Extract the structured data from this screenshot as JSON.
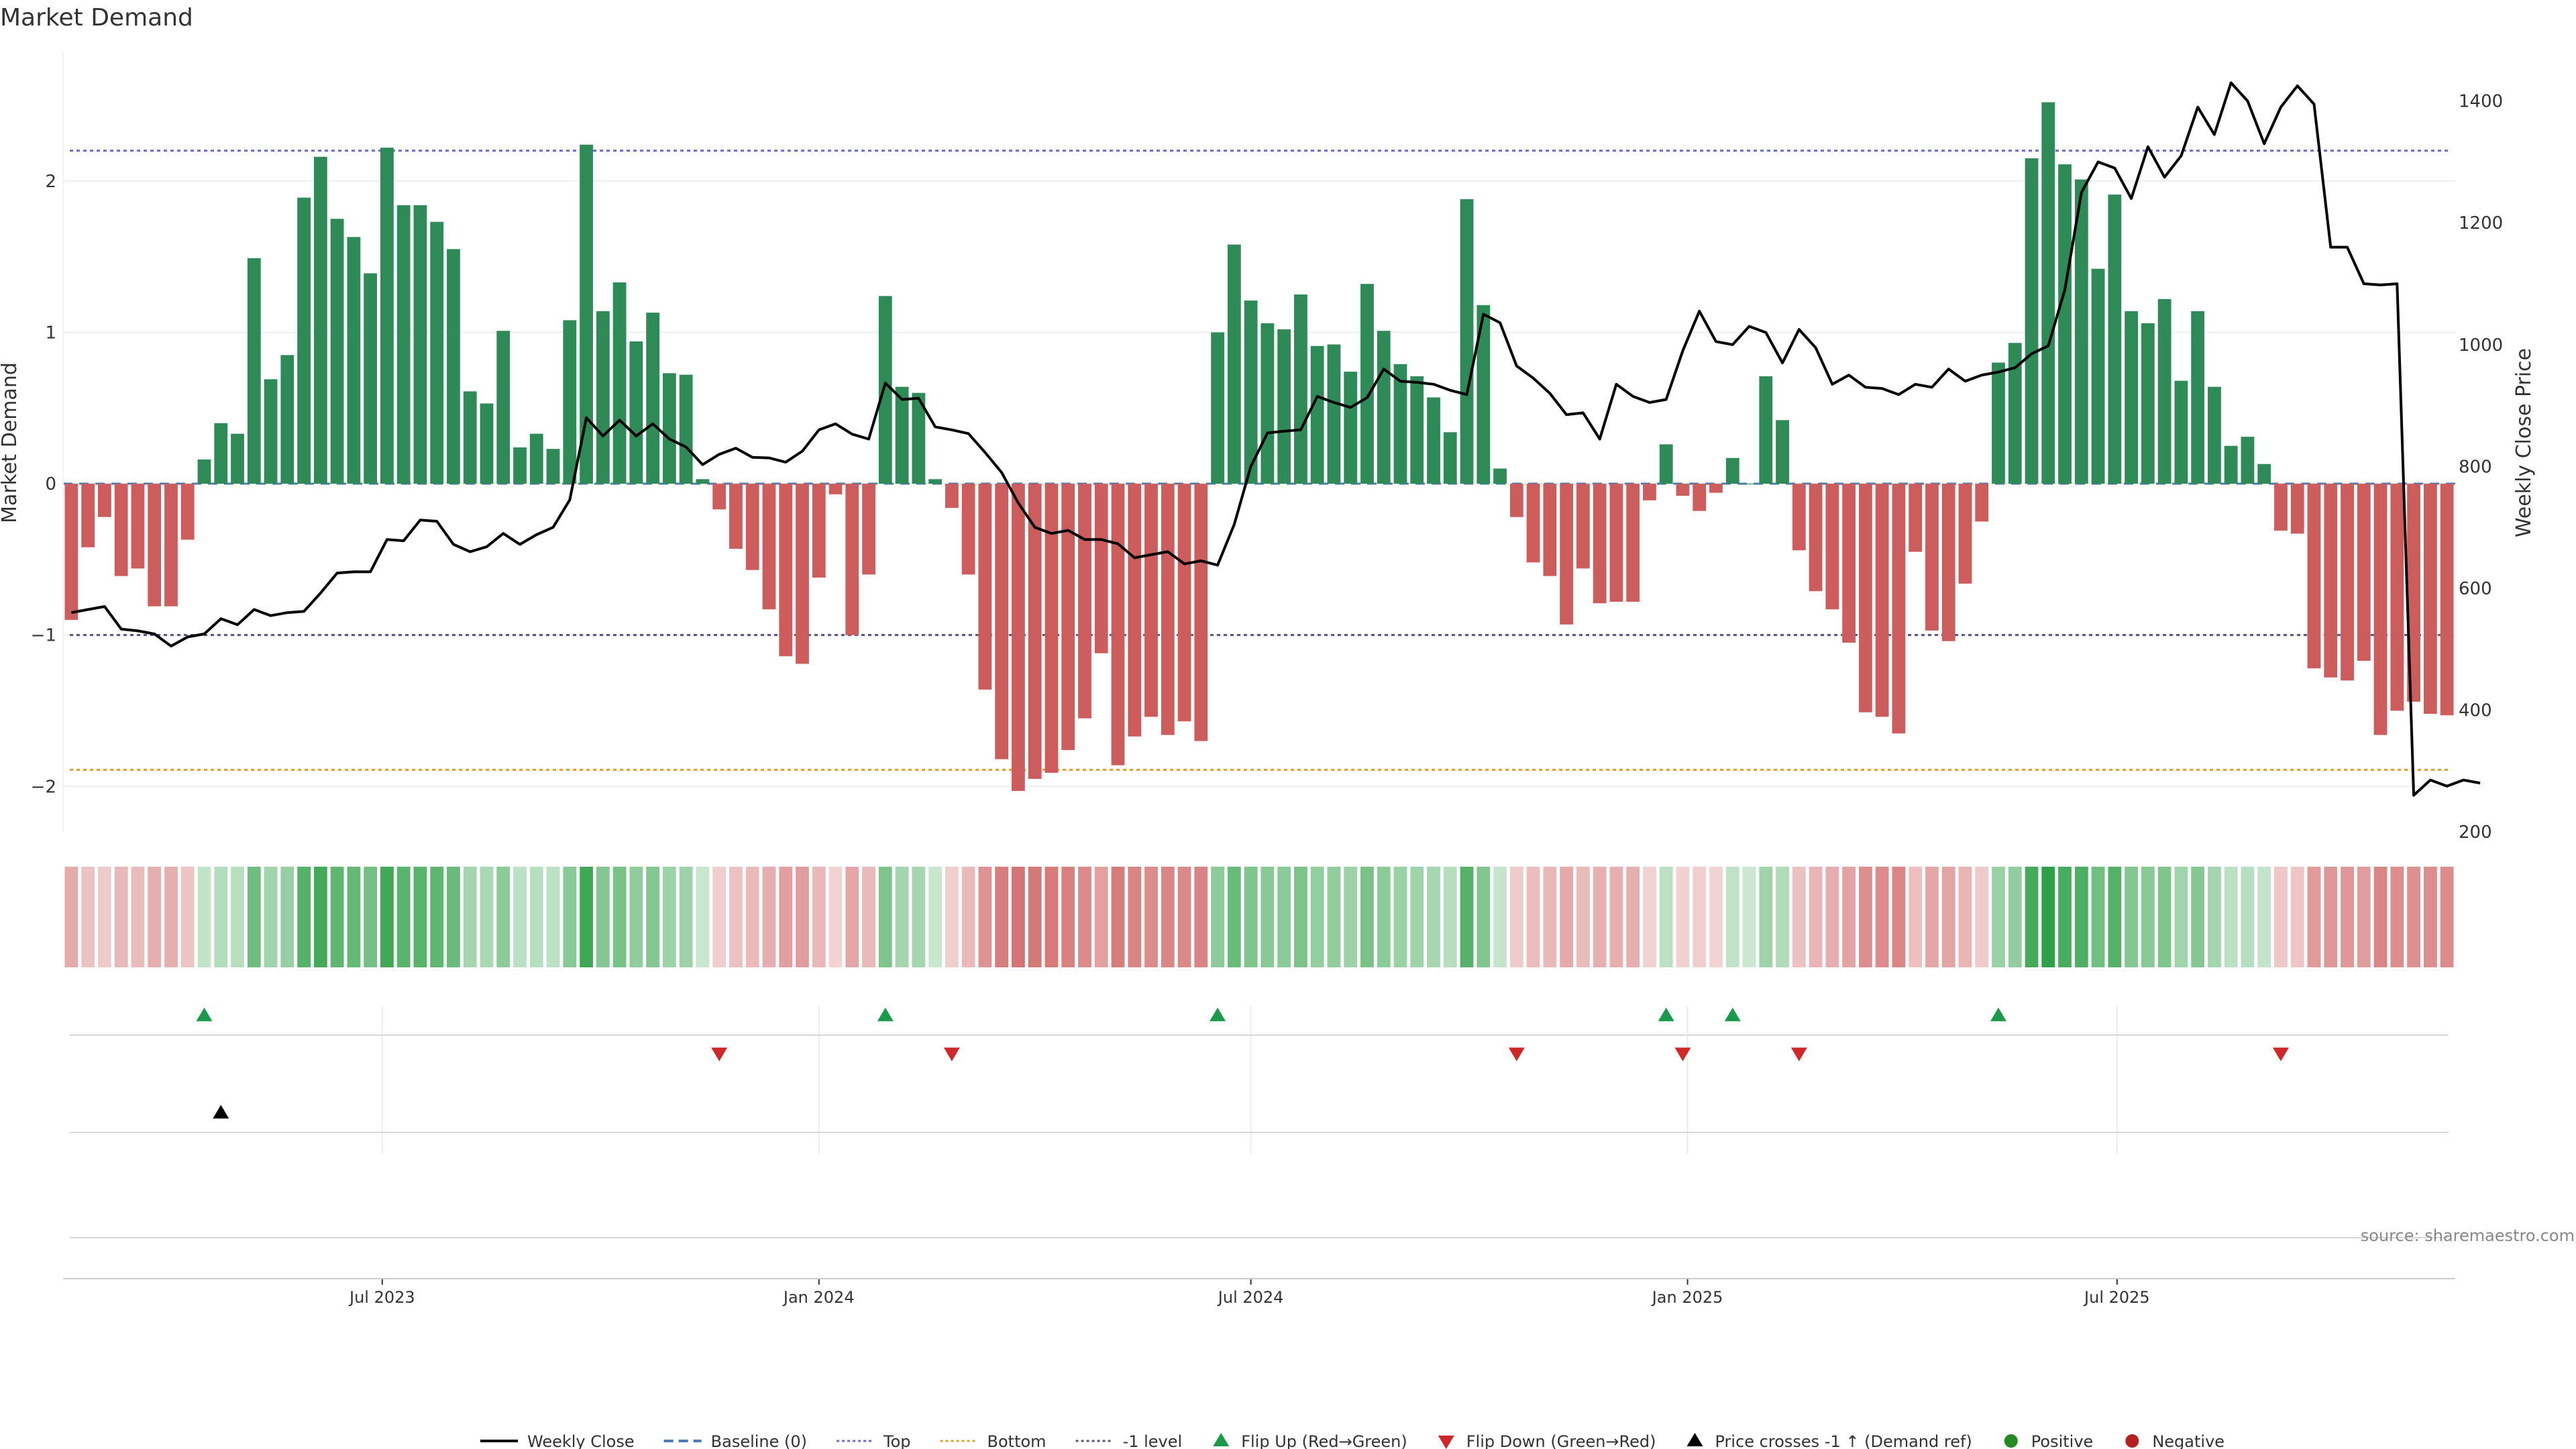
{
  "chart_data": {
    "type": "bar",
    "title": "Market Demand",
    "ylabel_left": "Market Demand",
    "ylabel_right": "Weekly Close Price",
    "source": "source: sharemaestro.com",
    "left_axis": {
      "ylim": [
        -2.3,
        2.85
      ],
      "ticks": [
        -2,
        -1,
        0,
        1,
        2
      ]
    },
    "right_axis": {
      "ylim": [
        200,
        1480
      ],
      "ticks": [
        200,
        400,
        600,
        800,
        1000,
        1200,
        1400
      ]
    },
    "x_start": "2023-02-20",
    "x_ticks": [
      "2023-07-01",
      "2024-01-01",
      "2024-07-01",
      "2025-01-01",
      "2025-07-01"
    ],
    "x_tick_labels": [
      "Jul 2023",
      "Jan 2024",
      "Jul 2024",
      "Jan 2025",
      "Jul 2025"
    ],
    "reference_lines": {
      "top": 2.2,
      "bottom": -1.89,
      "minus_one": -1,
      "baseline": 0
    },
    "colors": {
      "positive": "#2e8b57",
      "negative": "#cd5c5c",
      "price": "#000000",
      "top_line": "#6a6ad0",
      "bottom_line": "#e0a040",
      "minus_one_line": "#555577",
      "baseline": "#4a7bb0",
      "flip_up": "#1a9a4a",
      "flip_down": "#d02828",
      "positive_dot": "#228b22",
      "negative_dot": "#b22222"
    },
    "demand": [
      -0.9,
      -0.42,
      -0.22,
      -0.61,
      -0.56,
      -0.81,
      -0.81,
      -0.37,
      0.16,
      0.4,
      0.33,
      1.49,
      0.69,
      0.85,
      1.89,
      2.16,
      1.75,
      1.63,
      1.39,
      2.22,
      1.84,
      1.84,
      1.73,
      1.55,
      0.61,
      0.53,
      1.01,
      0.24,
      0.33,
      0.23,
      1.08,
      2.24,
      1.14,
      1.33,
      0.94,
      1.13,
      0.73,
      0.72,
      0.03,
      -0.17,
      -0.43,
      -0.57,
      -0.83,
      -1.14,
      -1.19,
      -0.62,
      -0.07,
      -1.0,
      -0.6,
      1.24,
      0.64,
      0.6,
      0.03,
      -0.16,
      -0.6,
      -1.36,
      -1.82,
      -2.03,
      -1.95,
      -1.91,
      -1.76,
      -1.55,
      -1.12,
      -1.86,
      -1.67,
      -1.54,
      -1.66,
      -1.57,
      -1.7,
      1.0,
      1.58,
      1.21,
      1.06,
      1.02,
      1.25,
      0.91,
      0.92,
      0.74,
      1.32,
      1.01,
      0.79,
      0.71,
      0.57,
      0.34,
      1.88,
      1.18,
      0.1,
      -0.22,
      -0.52,
      -0.61,
      -0.93,
      -0.56,
      -0.79,
      -0.78,
      -0.78,
      -0.11,
      0.26,
      -0.08,
      -0.18,
      -0.06,
      0.17,
      0.0,
      0.71,
      0.42,
      -0.44,
      -0.71,
      -0.83,
      -1.05,
      -1.51,
      -1.54,
      -1.65,
      -0.45,
      -0.97,
      -1.04,
      -0.66,
      -0.25,
      0.8,
      0.93,
      2.15,
      2.52,
      2.11,
      2.01,
      1.42,
      1.91,
      1.14,
      1.06,
      1.22,
      0.68,
      1.14,
      0.64,
      0.25,
      0.31,
      0.13,
      -0.31,
      -0.33,
      -1.22,
      -1.28,
      -1.3,
      -1.17,
      -1.66,
      -1.5,
      -1.44,
      -1.52,
      -1.53
    ],
    "weekly_close": [
      560,
      565,
      570,
      533,
      530,
      525,
      505,
      520,
      525,
      550,
      540,
      565,
      555,
      560,
      562,
      592,
      625,
      627,
      627,
      680,
      678,
      712,
      710,
      672,
      660,
      668,
      690,
      672,
      688,
      700,
      745,
      880,
      850,
      876,
      850,
      870,
      845,
      832,
      803,
      820,
      830,
      815,
      814,
      807,
      825,
      860,
      870,
      853,
      845,
      937,
      910,
      912,
      865,
      860,
      854,
      823,
      790,
      740,
      700,
      690,
      695,
      680,
      680,
      673,
      650,
      655,
      660,
      640,
      645,
      638,
      705,
      800,
      855,
      858,
      860,
      915,
      905,
      897,
      913,
      960,
      940,
      938,
      935,
      925,
      918,
      1050,
      1036,
      965,
      945,
      920,
      885,
      888,
      845,
      935,
      915,
      905,
      910,
      990,
      1055,
      1005,
      1000,
      1030,
      1020,
      970,
      1025,
      995,
      935,
      950,
      930,
      928,
      918,
      935,
      930,
      960,
      940,
      950,
      955,
      962,
      985,
      998,
      1090,
      1250,
      1300,
      1290,
      1240,
      1325,
      1275,
      1310,
      1390,
      1345,
      1430,
      1400,
      1330,
      1390,
      1425,
      1395,
      1160,
      1160,
      1100,
      1098,
      1100,
      260,
      285,
      275,
      285,
      280
    ],
    "flip_up_idx": [
      8,
      49,
      69,
      96,
      100,
      116
    ],
    "flip_down_idx": [
      39,
      53,
      87,
      97,
      104,
      133
    ],
    "price_cross_idx": [
      9
    ],
    "legend": [
      {
        "label": "Weekly Close",
        "style": "solid-line"
      },
      {
        "label": "Baseline (0)",
        "style": "dashed-blue"
      },
      {
        "label": "Top",
        "style": "dotted-purple"
      },
      {
        "label": "Bottom",
        "style": "dotted-orange"
      },
      {
        "label": "-1 level",
        "style": "dotted-gray"
      },
      {
        "label": "Flip Up (Red→Green)",
        "style": "triangle-up-green"
      },
      {
        "label": "Flip Down (Green→Red)",
        "style": "triangle-down-red"
      },
      {
        "label": "Price crosses -1 ↑ (Demand ref)",
        "style": "triangle-up-black"
      },
      {
        "label": "Positive",
        "style": "dot-green"
      },
      {
        "label": "Negative",
        "style": "dot-red"
      }
    ]
  }
}
